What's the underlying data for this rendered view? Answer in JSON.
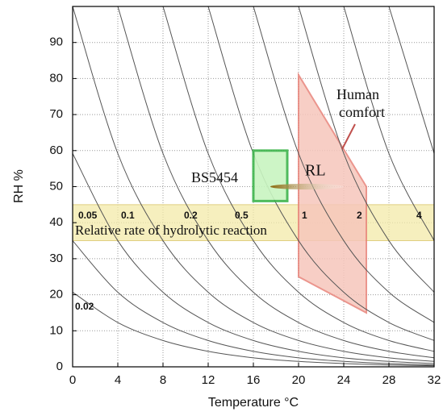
{
  "chart_data": {
    "type": "isoperm",
    "xlabel": "Temperature °C",
    "ylabel": "RH %",
    "xlim": [
      0,
      32
    ],
    "ylim": [
      0,
      100
    ],
    "xticks": [
      0,
      4,
      8,
      12,
      16,
      20,
      24,
      28,
      32
    ],
    "yticks": [
      0,
      10,
      20,
      30,
      40,
      50,
      60,
      70,
      80,
      90
    ],
    "grid": true,
    "curve_color": "#555555",
    "isoperms": [
      {
        "x": [
          0,
          4,
          8,
          12,
          16,
          20,
          24,
          28,
          32
        ],
        "y": [
          20.7,
          12.3,
          7.3,
          4.3,
          2.5,
          1.5,
          0.9,
          0.5,
          0.3
        ]
      },
      {
        "x": [
          0,
          4,
          8,
          12,
          16,
          20,
          24,
          28,
          32
        ],
        "y": [
          35.0,
          20.7,
          12.3,
          7.3,
          4.3,
          2.5,
          1.5,
          0.9,
          0.5
        ]
      },
      {
        "x": [
          0,
          4,
          8,
          12,
          16,
          20,
          24,
          28,
          32
        ],
        "y": [
          59.2,
          35.0,
          20.7,
          12.3,
          7.3,
          4.3,
          2.5,
          1.5,
          0.9
        ]
      },
      {
        "x": [
          0,
          4,
          8,
          12,
          16,
          20,
          24,
          28,
          32
        ],
        "y": [
          100,
          59.2,
          35.0,
          20.7,
          12.3,
          7.3,
          4.3,
          2.5,
          1.5
        ]
      },
      {
        "x": [
          4,
          8,
          12,
          16,
          20,
          24,
          28,
          32
        ],
        "y": [
          100,
          59.2,
          35.0,
          20.7,
          12.3,
          7.3,
          4.3,
          2.5
        ]
      },
      {
        "x": [
          8,
          12,
          16,
          20,
          24,
          28,
          32
        ],
        "y": [
          100,
          59.2,
          35.0,
          20.7,
          12.3,
          7.3,
          4.3
        ]
      },
      {
        "x": [
          12,
          16,
          20,
          24,
          28,
          32
        ],
        "y": [
          100,
          59.2,
          35.0,
          20.7,
          12.3,
          7.3
        ]
      },
      {
        "x": [
          16,
          20,
          24,
          28,
          32
        ],
        "y": [
          100,
          59.2,
          35.0,
          20.7,
          12.3
        ]
      },
      {
        "x": [
          20,
          24,
          28,
          32
        ],
        "y": [
          100,
          59.2,
          35.0,
          20.7
        ]
      },
      {
        "x": [
          24,
          28,
          32
        ],
        "y": [
          100,
          59.2,
          35.0
        ]
      },
      {
        "x": [
          28,
          32
        ],
        "y": [
          100,
          59.2
        ]
      }
    ],
    "band": {
      "label": "Relative rate of hydrolytic reaction",
      "y": [
        35,
        45
      ],
      "color": "#f3e9a8",
      "rate_labels": [
        "0.05",
        "0.1",
        "0.2",
        "0.5",
        "1",
        "2",
        "4"
      ]
    },
    "curve_label": "0.02",
    "regions": [
      {
        "label": "BS5454",
        "shape": "rect",
        "x": [
          16,
          19
        ],
        "y": [
          46,
          60
        ],
        "color": "#3cb44b",
        "fill": "#c8f5c0"
      },
      {
        "label": "RL",
        "shape": "ellipse",
        "x": [
          17.5,
          24
        ],
        "y": [
          49.2,
          50.8
        ],
        "color": "#8b6a10",
        "fill": "#c9a24a"
      },
      {
        "label": [
          "Human",
          "comfort"
        ],
        "shape": "polygon",
        "x": [
          20,
          26,
          26,
          20
        ],
        "y": [
          81,
          50,
          15,
          25
        ],
        "color": "#e8837a",
        "fill": "#f6c6bb"
      }
    ]
  }
}
